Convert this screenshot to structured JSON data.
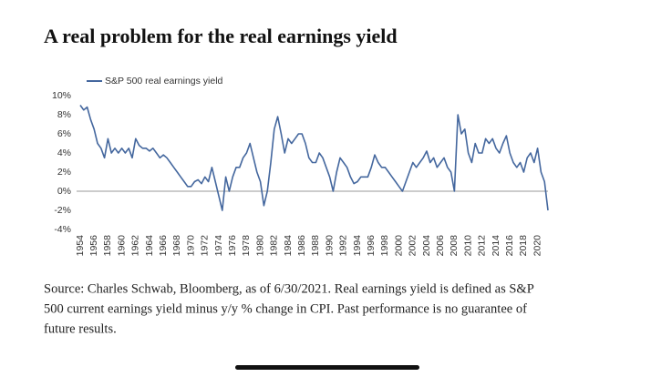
{
  "chart_data": {
    "type": "line",
    "title": "A real problem for the real earnings yield",
    "source": [
      "Source: Charles Schwab, Bloomberg, as of 6/30/2021. Real earnings yield is defined as S&P",
      "500 current earnings yield minus y/y % change in CPI.  Past performance is no guarantee of",
      "future results."
    ],
    "xlim": [
      1954,
      2021.5
    ],
    "xticks": [
      1954,
      1956,
      1958,
      1960,
      1962,
      1964,
      1966,
      1968,
      1970,
      1972,
      1974,
      1976,
      1978,
      1980,
      1982,
      1984,
      1986,
      1988,
      1990,
      1992,
      1994,
      1996,
      1998,
      2000,
      2002,
      2004,
      2006,
      2008,
      2010,
      2012,
      2014,
      2016,
      2018,
      2020
    ],
    "ylim": [
      -4,
      10
    ],
    "yticks": [
      {
        "value": 10,
        "label": "10%"
      },
      {
        "value": 8,
        "label": "8%"
      },
      {
        "value": 6,
        "label": "6%"
      },
      {
        "value": 4,
        "label": "4%"
      },
      {
        "value": 2,
        "label": "2%"
      },
      {
        "value": 0,
        "label": "0%"
      },
      {
        "value": -2,
        "label": "-2%"
      },
      {
        "value": -4,
        "label": "-4%"
      }
    ],
    "x": [
      1954,
      1954.5,
      1955,
      1955.5,
      1956,
      1956.5,
      1957,
      1957.5,
      1958,
      1958.5,
      1959,
      1959.5,
      1960,
      1960.5,
      1961,
      1961.5,
      1962,
      1962.5,
      1963,
      1963.5,
      1964,
      1964.5,
      1965,
      1965.5,
      1966,
      1966.5,
      1967,
      1967.5,
      1968,
      1968.5,
      1969,
      1969.5,
      1970,
      1970.5,
      1971,
      1971.5,
      1972,
      1972.5,
      1973,
      1973.5,
      1974,
      1974.5,
      1975,
      1975.5,
      1976,
      1976.5,
      1977,
      1977.5,
      1978,
      1978.5,
      1979,
      1979.5,
      1980,
      1980.5,
      1981,
      1981.5,
      1982,
      1982.5,
      1983,
      1983.5,
      1984,
      1984.5,
      1985,
      1985.5,
      1986,
      1986.5,
      1987,
      1987.5,
      1988,
      1988.5,
      1989,
      1989.5,
      1990,
      1990.5,
      1991,
      1991.5,
      1992,
      1992.5,
      1993,
      1993.5,
      1994,
      1994.5,
      1995,
      1995.5,
      1996,
      1996.5,
      1997,
      1997.5,
      1998,
      1998.5,
      1999,
      1999.5,
      2000,
      2000.5,
      2001,
      2001.5,
      2002,
      2002.5,
      2003,
      2003.5,
      2004,
      2004.5,
      2005,
      2005.5,
      2006,
      2006.5,
      2007,
      2007.5,
      2008,
      2008.5,
      2009,
      2009.5,
      2010,
      2010.5,
      2011,
      2011.5,
      2012,
      2012.5,
      2013,
      2013.5,
      2014,
      2014.5,
      2015,
      2015.5,
      2016,
      2016.5,
      2017,
      2017.5,
      2018,
      2018.5,
      2019,
      2019.5,
      2020,
      2020.5,
      2021,
      2021.5
    ],
    "series": [
      {
        "name": "S&P 500 real earnings yield",
        "color": "#44679e",
        "values": [
          9,
          8.5,
          8.8,
          7.5,
          6.5,
          5,
          4.5,
          3.5,
          5.5,
          4,
          4.5,
          4,
          4.5,
          4,
          4.5,
          3.5,
          5.5,
          4.8,
          4.5,
          4.5,
          4.2,
          4.5,
          4,
          3.5,
          3.8,
          3.5,
          3,
          2.5,
          2,
          1.5,
          1,
          0.5,
          0.5,
          1,
          1.2,
          0.8,
          1.5,
          1,
          2.5,
          1,
          -0.5,
          -2,
          1.5,
          0,
          1.5,
          2.5,
          2.5,
          3.5,
          4,
          5,
          3.5,
          2,
          1,
          -1.5,
          0,
          3,
          6.5,
          7.8,
          6,
          4,
          5.5,
          5,
          5.5,
          6,
          6,
          5,
          3.5,
          3,
          3,
          4,
          3.5,
          2.5,
          1.5,
          0,
          2,
          3.5,
          3,
          2.5,
          1.5,
          0.8,
          1,
          1.5,
          1.5,
          1.5,
          2.5,
          3.8,
          3,
          2.5,
          2.5,
          2,
          1.5,
          1,
          0.5,
          0,
          1,
          2,
          3,
          2.5,
          3,
          3.5,
          4.2,
          3,
          3.5,
          2.5,
          3,
          3.5,
          2.5,
          2,
          0,
          8,
          6,
          6.5,
          4,
          3,
          5,
          4,
          4,
          5.5,
          5,
          5.5,
          4.5,
          4,
          5,
          5.8,
          4,
          3,
          2.5,
          3,
          2,
          3.5,
          4,
          3,
          4.5,
          2,
          1,
          -2
        ]
      }
    ]
  }
}
